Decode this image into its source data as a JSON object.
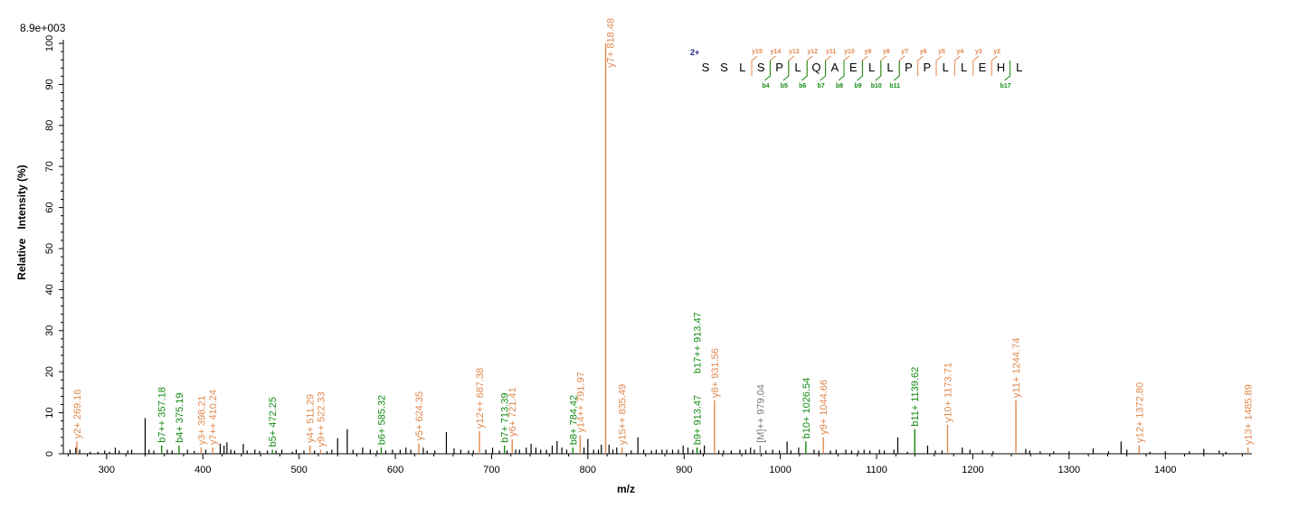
{
  "chart_data": {
    "type": "bar",
    "scale_label": "8.9e+003",
    "xlabel": "m/z",
    "ylabel": "Relative   Intensity (%)",
    "xlim": [
      255,
      1490
    ],
    "ylim": [
      0,
      100
    ],
    "x_ticks": [
      300,
      400,
      500,
      600,
      700,
      800,
      900,
      1000,
      1100,
      1200,
      1300,
      1400
    ],
    "y_ticks": [
      0,
      10,
      20,
      30,
      40,
      50,
      60,
      70,
      80,
      90,
      100
    ],
    "colors": {
      "y_ion": "#e0894f",
      "b_ion": "#138a13",
      "precursor": "#7a7a7a",
      "unassigned": "#000000",
      "charge": "#1a237e"
    },
    "annotated_peaks": [
      {
        "mz": 269.16,
        "intensity": 3,
        "label": "y2+ 269.16",
        "ion": "y"
      },
      {
        "mz": 357.18,
        "intensity": 2,
        "label": "b7++ 357.18",
        "ion": "b"
      },
      {
        "mz": 375.19,
        "intensity": 2,
        "label": "b4+ 375.19",
        "ion": "b"
      },
      {
        "mz": 398.21,
        "intensity": 1.5,
        "label": "y3+ 398.21",
        "ion": "y"
      },
      {
        "mz": 410.24,
        "intensity": 1.5,
        "label": "y7++ 410.24",
        "ion": "y"
      },
      {
        "mz": 472.25,
        "intensity": 1,
        "label": "b5+ 472.25",
        "ion": "b"
      },
      {
        "mz": 511.29,
        "intensity": 2,
        "label": "y4+ 511.29",
        "ion": "y"
      },
      {
        "mz": 522.33,
        "intensity": 1,
        "label": "y9++ 522.33",
        "ion": "y"
      },
      {
        "mz": 585.32,
        "intensity": 1.5,
        "label": "b6+ 585.32",
        "ion": "b"
      },
      {
        "mz": 624.35,
        "intensity": 2.5,
        "label": "y5+ 624.35",
        "ion": "y"
      },
      {
        "mz": 687.38,
        "intensity": 5.5,
        "label": "y12++ 687.38",
        "ion": "y"
      },
      {
        "mz": 713.39,
        "intensity": 2,
        "label": "b7+ 713.39",
        "ion": "b"
      },
      {
        "mz": 721.41,
        "intensity": 3.5,
        "label": "y6+ 721.41",
        "ion": "y"
      },
      {
        "mz": 784.42,
        "intensity": 1.5,
        "label": "b8+ 784.42",
        "ion": "b"
      },
      {
        "mz": 791.97,
        "intensity": 4.5,
        "label": "y14++ 791.97",
        "ion": "y"
      },
      {
        "mz": 818.48,
        "intensity": 100,
        "label": "y7+ 818.48",
        "ion": "y"
      },
      {
        "mz": 835.49,
        "intensity": 1.5,
        "label": "y15++ 835.49",
        "ion": "y"
      },
      {
        "mz": 913.47,
        "intensity": 1.5,
        "label": "b9+ 913.47",
        "ion": "b"
      },
      {
        "mz": 913.47,
        "intensity": 1.5,
        "label": "b17++ 913.47",
        "ion": "b",
        "label_top": true
      },
      {
        "mz": 931.56,
        "intensity": 13,
        "label": "y8+ 931.56",
        "ion": "y"
      },
      {
        "mz": 979.04,
        "intensity": 2,
        "label": "[M]++ 979.04",
        "ion": "precursor"
      },
      {
        "mz": 1026.54,
        "intensity": 3,
        "label": "b10+ 1026.54",
        "ion": "b"
      },
      {
        "mz": 1044.66,
        "intensity": 4,
        "label": "y9+ 1044.66",
        "ion": "y"
      },
      {
        "mz": 1139.62,
        "intensity": 6,
        "label": "b11+ 1139.62",
        "ion": "b"
      },
      {
        "mz": 1173.71,
        "intensity": 7,
        "label": "y10+ 1173.71",
        "ion": "y"
      },
      {
        "mz": 1244.74,
        "intensity": 13,
        "label": "y11+ 1244.74",
        "ion": "y"
      },
      {
        "mz": 1372.8,
        "intensity": 2,
        "label": "y12+ 1372.80",
        "ion": "y"
      },
      {
        "mz": 1485.89,
        "intensity": 1.5,
        "label": "y13+ 1485.89",
        "ion": "y"
      }
    ],
    "unassigned_peaks": [
      [
        262,
        1
      ],
      [
        268,
        1.5
      ],
      [
        272,
        1
      ],
      [
        283,
        0.5
      ],
      [
        291,
        0.5
      ],
      [
        298,
        0.8
      ],
      [
        303,
        0.5
      ],
      [
        309,
        1.5
      ],
      [
        313,
        0.8
      ],
      [
        322,
        0.8
      ],
      [
        326,
        1
      ],
      [
        340,
        8.7
      ],
      [
        344,
        1
      ],
      [
        349,
        0.8
      ],
      [
        363,
        1
      ],
      [
        368,
        0.8
      ],
      [
        384,
        1
      ],
      [
        391,
        0.7
      ],
      [
        403,
        1
      ],
      [
        418,
        2.5
      ],
      [
        422,
        2
      ],
      [
        425,
        2.8
      ],
      [
        429,
        1
      ],
      [
        433,
        0.8
      ],
      [
        442,
        2.4
      ],
      [
        446,
        0.8
      ],
      [
        454,
        1
      ],
      [
        459,
        0.7
      ],
      [
        467,
        0.8
      ],
      [
        476,
        0.8
      ],
      [
        482,
        1
      ],
      [
        493,
        0.5
      ],
      [
        497,
        1
      ],
      [
        505,
        0.8
      ],
      [
        516,
        0.8
      ],
      [
        529,
        0.6
      ],
      [
        534,
        1
      ],
      [
        540,
        3.8
      ],
      [
        550,
        6
      ],
      [
        556,
        1
      ],
      [
        566,
        1.5
      ],
      [
        574,
        1
      ],
      [
        581,
        0.8
      ],
      [
        590,
        0.8
      ],
      [
        597,
        1
      ],
      [
        605,
        1
      ],
      [
        611,
        1.5
      ],
      [
        616,
        1
      ],
      [
        629,
        1.5
      ],
      [
        633,
        0.8
      ],
      [
        641,
        0.8
      ],
      [
        653,
        5.3
      ],
      [
        661,
        1.3
      ],
      [
        668,
        1
      ],
      [
        676,
        0.8
      ],
      [
        681,
        0.8
      ],
      [
        694,
        1
      ],
      [
        701,
        1.5
      ],
      [
        708,
        0.8
      ],
      [
        716,
        0.8
      ],
      [
        725,
        1
      ],
      [
        729,
        1
      ],
      [
        736,
        1.5
      ],
      [
        741,
        2.4
      ],
      [
        746,
        1.5
      ],
      [
        751,
        1
      ],
      [
        757,
        1
      ],
      [
        763,
        2
      ],
      [
        768,
        3.1
      ],
      [
        773,
        1.5
      ],
      [
        778,
        1
      ],
      [
        796,
        1.5
      ],
      [
        800,
        3.6
      ],
      [
        806,
        1
      ],
      [
        811,
        1
      ],
      [
        814,
        2.2
      ],
      [
        822,
        2.2
      ],
      [
        826,
        1
      ],
      [
        830,
        1.5
      ],
      [
        845,
        0.8
      ],
      [
        852,
        4
      ],
      [
        858,
        1
      ],
      [
        866,
        0.8
      ],
      [
        871,
        1
      ],
      [
        877,
        1
      ],
      [
        882,
        1
      ],
      [
        888,
        1
      ],
      [
        894,
        1
      ],
      [
        899,
        2
      ],
      [
        904,
        1.5
      ],
      [
        909,
        1
      ],
      [
        917,
        1
      ],
      [
        921,
        2
      ],
      [
        936,
        0.8
      ],
      [
        941,
        0.8
      ],
      [
        949,
        0.8
      ],
      [
        958,
        1
      ],
      [
        964,
        1
      ],
      [
        969,
        1.5
      ],
      [
        973,
        1
      ],
      [
        985,
        0.8
      ],
      [
        992,
        1
      ],
      [
        999,
        0.8
      ],
      [
        1007,
        3
      ],
      [
        1011,
        0.8
      ],
      [
        1019,
        1.5
      ],
      [
        1035,
        1
      ],
      [
        1040,
        0.8
      ],
      [
        1052,
        0.8
      ],
      [
        1058,
        1
      ],
      [
        1068,
        1
      ],
      [
        1074,
        0.8
      ],
      [
        1081,
        0.8
      ],
      [
        1087,
        1
      ],
      [
        1093,
        0.8
      ],
      [
        1103,
        1
      ],
      [
        1108,
        0.8
      ],
      [
        1118,
        1
      ],
      [
        1122,
        4
      ],
      [
        1132,
        0.5
      ],
      [
        1153,
        2
      ],
      [
        1161,
        0.8
      ],
      [
        1168,
        0.8
      ],
      [
        1189,
        1.5
      ],
      [
        1197,
        1
      ],
      [
        1210,
        0.8
      ],
      [
        1221,
        0.6
      ],
      [
        1255,
        1.2
      ],
      [
        1259,
        0.8
      ],
      [
        1270,
        0.6
      ],
      [
        1284,
        0.6
      ],
      [
        1300,
        0.6
      ],
      [
        1325,
        1.3
      ],
      [
        1341,
        0.6
      ],
      [
        1354,
        3
      ],
      [
        1360,
        1
      ],
      [
        1384,
        0.5
      ],
      [
        1400,
        0.6
      ],
      [
        1425,
        0.6
      ],
      [
        1440,
        1.2
      ],
      [
        1456,
        0.8
      ],
      [
        1463,
        0.5
      ]
    ],
    "sequence": {
      "charge": "2+",
      "residues": [
        "S",
        "S",
        "L",
        "S",
        "P",
        "L",
        "Q",
        "A",
        "E",
        "L",
        "L",
        "P",
        "P",
        "L",
        "L",
        "E",
        "H",
        "L"
      ],
      "y_ions": [
        {
          "after": 3,
          "label": "y15"
        },
        {
          "after": 4,
          "label": "y14"
        },
        {
          "after": 5,
          "label": "y13"
        },
        {
          "after": 6,
          "label": "y12"
        },
        {
          "after": 7,
          "label": "y11"
        },
        {
          "after": 8,
          "label": "y10"
        },
        {
          "after": 9,
          "label": "y9"
        },
        {
          "after": 10,
          "label": "y8"
        },
        {
          "after": 11,
          "label": "y7"
        },
        {
          "after": 12,
          "label": "y6"
        },
        {
          "after": 13,
          "label": "y5"
        },
        {
          "after": 14,
          "label": "y4"
        },
        {
          "after": 15,
          "label": "y3"
        },
        {
          "after": 16,
          "label": "y2"
        }
      ],
      "b_ions": [
        {
          "after": 4,
          "label": "b4"
        },
        {
          "after": 5,
          "label": "b5"
        },
        {
          "after": 6,
          "label": "b6"
        },
        {
          "after": 7,
          "label": "b7"
        },
        {
          "after": 8,
          "label": "b8"
        },
        {
          "after": 9,
          "label": "b9"
        },
        {
          "after": 10,
          "label": "b10"
        },
        {
          "after": 11,
          "label": "b11"
        },
        {
          "after": 17,
          "label": "b17"
        }
      ]
    }
  }
}
